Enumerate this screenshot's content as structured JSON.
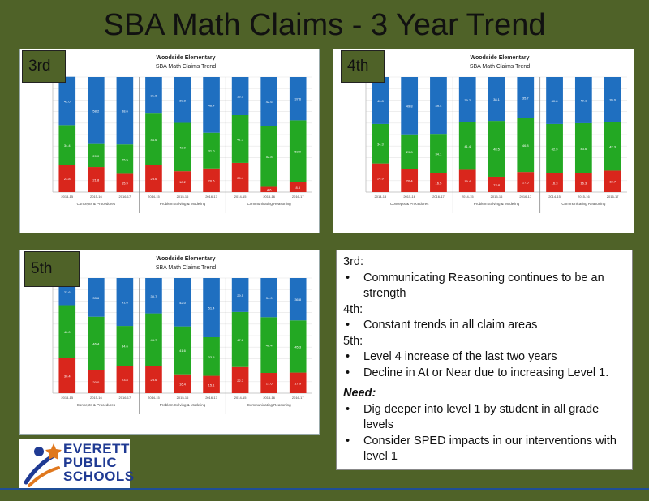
{
  "title": "SBA Math Claims - 3 Year Trend",
  "colors": {
    "level1": "#d9261c",
    "level2": "#23a823",
    "level3": "#1f6fc0"
  },
  "charts": [
    {
      "grade": "3rd",
      "school": "Woodside Elementary",
      "subtitle": "SBA Math Claims Trend",
      "groups": [
        {
          "label": "Concepts & Procedures",
          "bars": [
            {
              "x": "2014-15",
              "v": [
                23.8,
                34.4,
                42.0
              ]
            },
            {
              "x": "2015-16",
              "v": [
                21.8,
                20.0,
                58.2
              ]
            },
            {
              "x": "2016-17",
              "v": [
                15.9,
                25.5,
                58.6
              ]
            }
          ]
        },
        {
          "label": "Problem Solving & Modeling",
          "bars": [
            {
              "x": "2014-15",
              "v": [
                23.6,
                44.6,
                31.8
              ]
            },
            {
              "x": "2015-16",
              "v": [
                18.2,
                42.0,
                39.8
              ]
            },
            {
              "x": "2016-17",
              "v": [
                20.6,
                31.0,
                48.4
              ]
            }
          ]
        },
        {
          "label": "Communicating Reasoning",
          "bars": [
            {
              "x": "2014-15",
              "v": [
                25.4,
                41.5,
                33.1
              ]
            },
            {
              "x": "2015-16",
              "v": [
                4.6,
                52.8,
                42.6
              ]
            },
            {
              "x": "2016-17",
              "v": [
                8.5,
                53.9,
                37.6
              ]
            }
          ]
        }
      ]
    },
    {
      "grade": "4th",
      "school": "Woodside Elementary",
      "subtitle": "SBA Math Claims Trend",
      "groups": [
        {
          "label": "Concepts & Procedures",
          "bars": [
            {
              "x": "2014-15",
              "v": [
                24.9,
                34.3,
                40.8
              ]
            },
            {
              "x": "2015-16",
              "v": [
                20.4,
                29.8,
                49.8
              ]
            },
            {
              "x": "2016-17",
              "v": [
                16.5,
                34.1,
                49.4
              ]
            }
          ]
        },
        {
          "label": "Problem Solving & Modeling",
          "bars": [
            {
              "x": "2014-15",
              "v": [
                19.4,
                41.4,
                39.2
              ]
            },
            {
              "x": "2015-16",
              "v": [
                13.4,
                48.5,
                38.1
              ]
            },
            {
              "x": "2016-17",
              "v": [
                17.5,
                46.8,
                35.7
              ]
            }
          ]
        },
        {
          "label": "Communicating Reasoning",
          "bars": [
            {
              "x": "2014-15",
              "v": [
                16.3,
                42.9,
                40.8
              ]
            },
            {
              "x": "2015-16",
              "v": [
                16.3,
                43.6,
                40.1
              ]
            },
            {
              "x": "2016-17",
              "v": [
                18.7,
                42.3,
                39.0
              ]
            }
          ]
        }
      ]
    },
    {
      "grade": "5th",
      "school": "Woodside Elementary",
      "subtitle": "SBA Math Claims Trend",
      "groups": [
        {
          "label": "Concepts & Procedures",
          "bars": [
            {
              "x": "2014-15",
              "v": [
                30.4,
                46.0,
                23.6
              ]
            },
            {
              "x": "2015-16",
              "v": [
                20.0,
                46.4,
                33.6
              ]
            },
            {
              "x": "2016-17",
              "v": [
                23.8,
                34.6,
                41.6
              ]
            }
          ]
        },
        {
          "label": "Problem Solving & Modeling",
          "bars": [
            {
              "x": "2014-15",
              "v": [
                23.6,
                45.7,
                30.7
              ]
            },
            {
              "x": "2015-16",
              "v": [
                16.4,
                41.6,
                42.0
              ]
            },
            {
              "x": "2016-17",
              "v": [
                15.1,
                33.5,
                51.4
              ]
            }
          ]
        },
        {
          "label": "Communicating Reasoning",
          "bars": [
            {
              "x": "2014-15",
              "v": [
                22.7,
                47.8,
                29.5
              ]
            },
            {
              "x": "2015-16",
              "v": [
                17.6,
                48.4,
                34.0
              ]
            },
            {
              "x": "2016-17",
              "v": [
                17.9,
                45.3,
                36.8
              ]
            }
          ]
        }
      ]
    }
  ],
  "notes": {
    "grade3_head": "3rd:",
    "grade3_items": [
      "Communicating Reasoning continues to be an strength"
    ],
    "grade4_head": "4th:",
    "grade4_items": [
      "Constant trends in all claim areas"
    ],
    "grade5_head": "5th:",
    "grade5_items": [
      "Level 4 increase of the last two years",
      "Decline in At or Near due to increasing Level 1."
    ],
    "need_head": "Need:",
    "need_items": [
      "Dig deeper into level 1 by student in all grade levels",
      "Consider SPED impacts in our interventions with level 1"
    ]
  },
  "logo": {
    "line1": "EVERETT",
    "line2": "PUBLIC",
    "line3": "SCHOOLS"
  }
}
